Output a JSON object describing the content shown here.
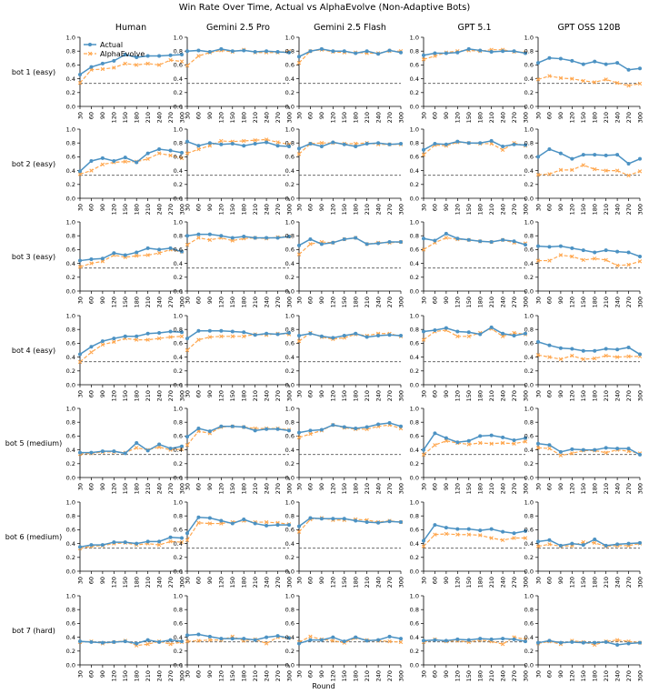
{
  "chart_data": {
    "type": "line",
    "title": "Win Rate Over Time, Actual vs AlphaEvolve (Non-Adaptive Bots)",
    "xlabel": "Round",
    "ylabel": "",
    "columns": [
      "Human",
      "Gemini 2.5 Pro",
      "Gemini 2.5 Flash",
      "GPT 5.1",
      "GPT OSS 120B"
    ],
    "rows": [
      "bot 1 (easy)",
      "bot 2 (easy)",
      "bot 3 (easy)",
      "bot 4 (easy)",
      "bot 5 (medium)",
      "bot 6 (medium)",
      "bot 7 (hard)"
    ],
    "x": [
      30,
      60,
      90,
      120,
      150,
      180,
      210,
      240,
      270,
      300
    ],
    "yticks": [
      "0.0",
      "0.2",
      "0.4",
      "0.6",
      "0.8",
      "1.0"
    ],
    "ylim": [
      0,
      1
    ],
    "xlim": [
      30,
      300
    ],
    "reference_line": 0.333,
    "series_names": [
      "Actual",
      "AlphaEvolve"
    ],
    "colors": {
      "actual": "#4c92c3",
      "alphaevolve": "#ffa64d",
      "reference": "#555555"
    },
    "legend": "top-left",
    "panels": [
      [
        {
          "actual": [
            0.46,
            0.57,
            0.62,
            0.66,
            0.75,
            0.71,
            0.73,
            0.73,
            0.74,
            0.75
          ],
          "alphaevolve": [
            0.34,
            0.53,
            0.54,
            0.56,
            0.62,
            0.6,
            0.62,
            0.6,
            0.67,
            0.65
          ]
        },
        {
          "actual": [
            0.8,
            0.81,
            0.79,
            0.83,
            0.8,
            0.81,
            0.79,
            0.8,
            0.79,
            0.78
          ],
          "alphaevolve": [
            0.59,
            0.73,
            0.78,
            0.81,
            0.79,
            0.82,
            0.78,
            0.78,
            0.78,
            0.8
          ]
        },
        {
          "actual": [
            0.72,
            0.8,
            0.83,
            0.8,
            0.8,
            0.77,
            0.8,
            0.76,
            0.81,
            0.78
          ],
          "alphaevolve": [
            0.63,
            0.8,
            0.82,
            0.79,
            0.78,
            0.78,
            0.77,
            0.77,
            0.8,
            0.8
          ]
        },
        {
          "actual": [
            0.74,
            0.77,
            0.77,
            0.78,
            0.83,
            0.81,
            0.79,
            0.8,
            0.8,
            0.77
          ],
          "alphaevolve": [
            0.68,
            0.73,
            0.78,
            0.8,
            0.81,
            0.8,
            0.82,
            0.82,
            0.79,
            0.78
          ]
        },
        {
          "actual": [
            0.63,
            0.7,
            0.69,
            0.66,
            0.61,
            0.65,
            0.61,
            0.63,
            0.53,
            0.55
          ],
          "alphaevolve": [
            0.39,
            0.44,
            0.41,
            0.4,
            0.37,
            0.35,
            0.39,
            0.34,
            0.3,
            0.33
          ]
        }
      ],
      [
        {
          "actual": [
            0.39,
            0.54,
            0.58,
            0.54,
            0.59,
            0.52,
            0.65,
            0.71,
            0.69,
            0.66
          ],
          "alphaevolve": [
            0.35,
            0.4,
            0.49,
            0.52,
            0.53,
            0.53,
            0.57,
            0.65,
            0.62,
            0.58
          ]
        },
        {
          "actual": [
            0.82,
            0.76,
            0.8,
            0.78,
            0.79,
            0.76,
            0.79,
            0.81,
            0.76,
            0.75
          ],
          "alphaevolve": [
            0.65,
            0.71,
            0.76,
            0.83,
            0.82,
            0.83,
            0.84,
            0.85,
            0.81,
            0.78
          ]
        },
        {
          "actual": [
            0.72,
            0.79,
            0.75,
            0.81,
            0.78,
            0.75,
            0.79,
            0.8,
            0.78,
            0.79
          ],
          "alphaevolve": [
            0.64,
            0.79,
            0.8,
            0.8,
            0.79,
            0.79,
            0.8,
            0.78,
            0.78,
            0.78
          ]
        },
        {
          "actual": [
            0.7,
            0.79,
            0.78,
            0.82,
            0.8,
            0.8,
            0.83,
            0.75,
            0.78,
            0.77
          ],
          "alphaevolve": [
            0.63,
            0.77,
            0.76,
            0.81,
            0.8,
            0.79,
            0.79,
            0.7,
            0.8,
            0.76
          ]
        },
        {
          "actual": [
            0.6,
            0.71,
            0.65,
            0.57,
            0.63,
            0.63,
            0.62,
            0.63,
            0.5,
            0.57
          ],
          "alphaevolve": [
            0.34,
            0.35,
            0.41,
            0.41,
            0.48,
            0.42,
            0.4,
            0.4,
            0.33,
            0.39
          ]
        }
      ],
      [
        {
          "actual": [
            0.44,
            0.46,
            0.47,
            0.55,
            0.52,
            0.56,
            0.62,
            0.6,
            0.62,
            0.57
          ],
          "alphaevolve": [
            0.35,
            0.4,
            0.43,
            0.52,
            0.49,
            0.51,
            0.52,
            0.55,
            0.6,
            0.57
          ]
        },
        {
          "actual": [
            0.8,
            0.82,
            0.82,
            0.8,
            0.77,
            0.79,
            0.77,
            0.77,
            0.77,
            0.79
          ],
          "alphaevolve": [
            0.67,
            0.77,
            0.74,
            0.77,
            0.73,
            0.76,
            0.77,
            0.76,
            0.78,
            0.79
          ]
        },
        {
          "actual": [
            0.66,
            0.75,
            0.68,
            0.7,
            0.75,
            0.77,
            0.68,
            0.69,
            0.71,
            0.71
          ],
          "alphaevolve": [
            0.53,
            0.68,
            0.71,
            0.7,
            0.75,
            0.77,
            0.68,
            0.7,
            0.7,
            0.71
          ]
        },
        {
          "actual": [
            0.76,
            0.73,
            0.83,
            0.76,
            0.74,
            0.72,
            0.71,
            0.74,
            0.72,
            0.67
          ],
          "alphaevolve": [
            0.6,
            0.7,
            0.77,
            0.75,
            0.74,
            0.72,
            0.71,
            0.74,
            0.7,
            0.69
          ]
        },
        {
          "actual": [
            0.65,
            0.64,
            0.65,
            0.62,
            0.59,
            0.56,
            0.59,
            0.57,
            0.56,
            0.5
          ],
          "alphaevolve": [
            0.44,
            0.44,
            0.52,
            0.5,
            0.45,
            0.47,
            0.45,
            0.37,
            0.38,
            0.43
          ]
        }
      ],
      [
        {
          "actual": [
            0.44,
            0.55,
            0.63,
            0.67,
            0.7,
            0.7,
            0.74,
            0.75,
            0.77,
            0.76
          ],
          "alphaevolve": [
            0.33,
            0.47,
            0.58,
            0.62,
            0.67,
            0.65,
            0.65,
            0.67,
            0.69,
            0.7
          ]
        },
        {
          "actual": [
            0.67,
            0.78,
            0.78,
            0.78,
            0.77,
            0.76,
            0.72,
            0.74,
            0.73,
            0.75
          ],
          "alphaevolve": [
            0.5,
            0.65,
            0.69,
            0.7,
            0.7,
            0.7,
            0.73,
            0.72,
            0.74,
            0.73
          ]
        },
        {
          "actual": [
            0.71,
            0.74,
            0.7,
            0.68,
            0.71,
            0.74,
            0.69,
            0.71,
            0.72,
            0.71
          ],
          "alphaevolve": [
            0.63,
            0.75,
            0.69,
            0.66,
            0.68,
            0.73,
            0.71,
            0.74,
            0.74,
            0.7
          ]
        },
        {
          "actual": [
            0.77,
            0.79,
            0.82,
            0.77,
            0.76,
            0.73,
            0.83,
            0.74,
            0.71,
            0.74
          ],
          "alphaevolve": [
            0.65,
            0.77,
            0.79,
            0.7,
            0.7,
            0.75,
            0.81,
            0.7,
            0.75,
            0.73
          ]
        },
        {
          "actual": [
            0.62,
            0.57,
            0.53,
            0.52,
            0.49,
            0.49,
            0.52,
            0.51,
            0.54,
            0.44
          ],
          "alphaevolve": [
            0.43,
            0.4,
            0.37,
            0.42,
            0.37,
            0.38,
            0.42,
            0.4,
            0.41,
            0.41
          ]
        }
      ],
      [
        {
          "actual": [
            0.36,
            0.36,
            0.38,
            0.38,
            0.35,
            0.5,
            0.39,
            0.48,
            0.42,
            0.45
          ],
          "alphaevolve": [
            0.34,
            0.35,
            0.37,
            0.37,
            0.36,
            0.43,
            0.4,
            0.44,
            0.4,
            0.41
          ]
        },
        {
          "actual": [
            0.59,
            0.71,
            0.67,
            0.74,
            0.74,
            0.73,
            0.68,
            0.7,
            0.7,
            0.68
          ],
          "alphaevolve": [
            0.47,
            0.67,
            0.64,
            0.73,
            0.74,
            0.73,
            0.71,
            0.71,
            0.71,
            0.69
          ]
        },
        {
          "actual": [
            0.65,
            0.68,
            0.69,
            0.76,
            0.73,
            0.71,
            0.73,
            0.77,
            0.79,
            0.74
          ],
          "alphaevolve": [
            0.58,
            0.63,
            0.68,
            0.76,
            0.72,
            0.7,
            0.7,
            0.74,
            0.76,
            0.71
          ]
        },
        {
          "actual": [
            0.4,
            0.64,
            0.57,
            0.51,
            0.53,
            0.6,
            0.61,
            0.58,
            0.54,
            0.57
          ],
          "alphaevolve": [
            0.33,
            0.47,
            0.53,
            0.5,
            0.48,
            0.5,
            0.49,
            0.5,
            0.49,
            0.52
          ]
        },
        {
          "actual": [
            0.49,
            0.47,
            0.37,
            0.41,
            0.4,
            0.4,
            0.43,
            0.42,
            0.42,
            0.33
          ],
          "alphaevolve": [
            0.43,
            0.42,
            0.32,
            0.35,
            0.39,
            0.39,
            0.36,
            0.4,
            0.38,
            0.35
          ]
        }
      ],
      [
        {
          "actual": [
            0.35,
            0.38,
            0.38,
            0.42,
            0.42,
            0.4,
            0.43,
            0.43,
            0.49,
            0.48
          ],
          "alphaevolve": [
            0.33,
            0.36,
            0.37,
            0.4,
            0.41,
            0.38,
            0.4,
            0.38,
            0.43,
            0.42
          ]
        },
        {
          "actual": [
            0.55,
            0.78,
            0.77,
            0.73,
            0.69,
            0.75,
            0.69,
            0.66,
            0.67,
            0.67
          ],
          "alphaevolve": [
            0.45,
            0.7,
            0.69,
            0.69,
            0.71,
            0.73,
            0.71,
            0.71,
            0.7,
            0.68
          ]
        },
        {
          "actual": [
            0.65,
            0.77,
            0.76,
            0.76,
            0.76,
            0.73,
            0.71,
            0.7,
            0.72,
            0.71
          ],
          "alphaevolve": [
            0.57,
            0.75,
            0.77,
            0.74,
            0.74,
            0.75,
            0.74,
            0.71,
            0.73,
            0.71
          ]
        },
        {
          "actual": [
            0.44,
            0.67,
            0.63,
            0.61,
            0.61,
            0.59,
            0.61,
            0.57,
            0.55,
            0.58
          ],
          "alphaevolve": [
            0.36,
            0.53,
            0.54,
            0.53,
            0.53,
            0.52,
            0.48,
            0.45,
            0.48,
            0.48
          ]
        },
        {
          "actual": [
            0.43,
            0.45,
            0.37,
            0.4,
            0.38,
            0.46,
            0.37,
            0.39,
            0.4,
            0.41
          ],
          "alphaevolve": [
            0.36,
            0.39,
            0.36,
            0.37,
            0.42,
            0.41,
            0.36,
            0.37,
            0.37,
            0.4
          ]
        }
      ],
      [
        {
          "actual": [
            0.34,
            0.33,
            0.32,
            0.33,
            0.34,
            0.31,
            0.36,
            0.33,
            0.36,
            0.34
          ],
          "alphaevolve": [
            0.33,
            0.34,
            0.31,
            0.33,
            0.35,
            0.28,
            0.3,
            0.34,
            0.3,
            0.33
          ]
        },
        {
          "actual": [
            0.43,
            0.44,
            0.41,
            0.38,
            0.38,
            0.38,
            0.36,
            0.4,
            0.42,
            0.39
          ],
          "alphaevolve": [
            0.34,
            0.35,
            0.36,
            0.36,
            0.41,
            0.35,
            0.37,
            0.31,
            0.4,
            0.39
          ]
        },
        {
          "actual": [
            0.31,
            0.36,
            0.36,
            0.4,
            0.34,
            0.4,
            0.35,
            0.36,
            0.41,
            0.38
          ],
          "alphaevolve": [
            0.33,
            0.41,
            0.37,
            0.35,
            0.32,
            0.39,
            0.36,
            0.35,
            0.34,
            0.33
          ]
        },
        {
          "actual": [
            0.35,
            0.36,
            0.35,
            0.37,
            0.36,
            0.38,
            0.37,
            0.38,
            0.37,
            0.34
          ],
          "alphaevolve": [
            0.33,
            0.37,
            0.34,
            0.35,
            0.33,
            0.36,
            0.34,
            0.3,
            0.4,
            0.37
          ]
        },
        {
          "actual": [
            0.32,
            0.35,
            0.32,
            0.33,
            0.32,
            0.32,
            0.33,
            0.29,
            0.31,
            0.32
          ],
          "alphaevolve": [
            0.31,
            0.34,
            0.3,
            0.35,
            0.33,
            0.29,
            0.34,
            0.36,
            0.34,
            0.32
          ]
        }
      ]
    ]
  }
}
